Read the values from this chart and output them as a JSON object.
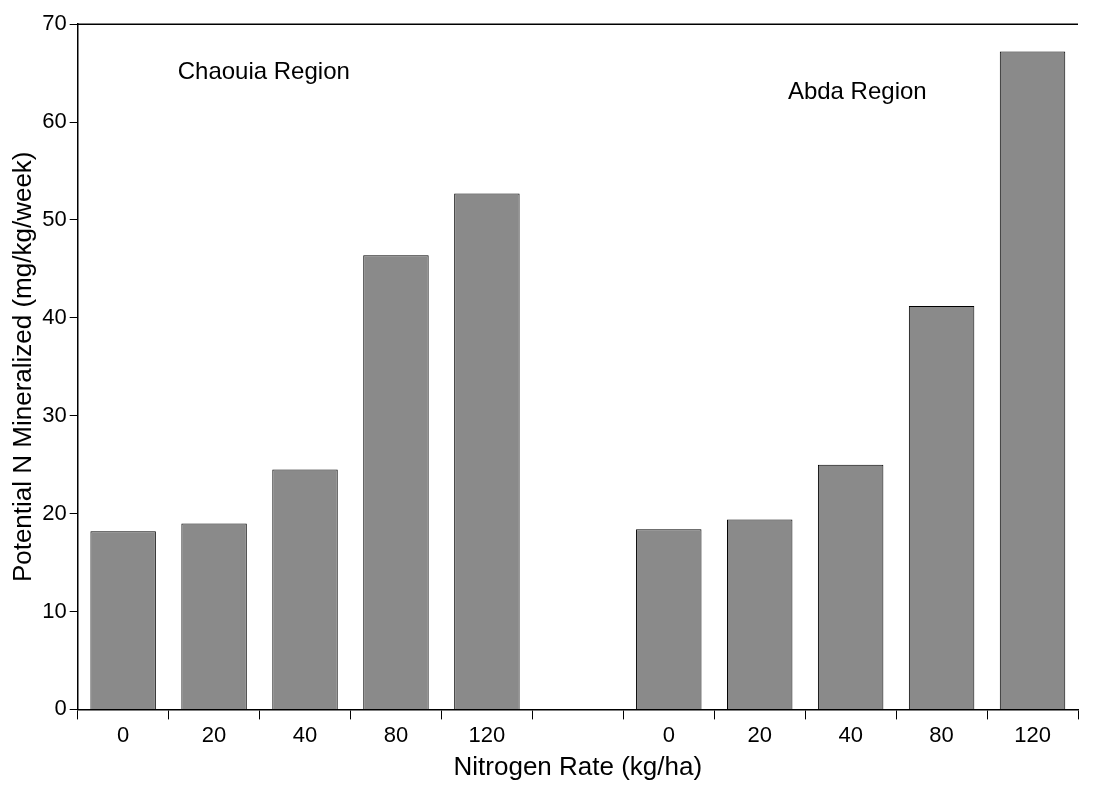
{
  "chart_data": {
    "type": "bar",
    "xlabel": "Nitrogen Rate (kg/ha)",
    "ylabel": "Potential N Mineralized (mg/kg/week)",
    "categories": [
      "0",
      "20",
      "40",
      "80",
      "120",
      null,
      "0",
      "20",
      "40",
      "80",
      "120"
    ],
    "values": [
      18.2,
      19.0,
      24.5,
      46.4,
      52.7,
      null,
      18.4,
      19.4,
      25.0,
      41.2,
      67.2
    ],
    "color": "#8a8a8a",
    "ylim": [
      0,
      70
    ],
    "yticks": [
      0,
      10,
      20,
      30,
      40,
      50,
      60,
      70
    ],
    "grid": false,
    "annotations": [
      "Chaouia Region",
      "Abda Region"
    ]
  }
}
